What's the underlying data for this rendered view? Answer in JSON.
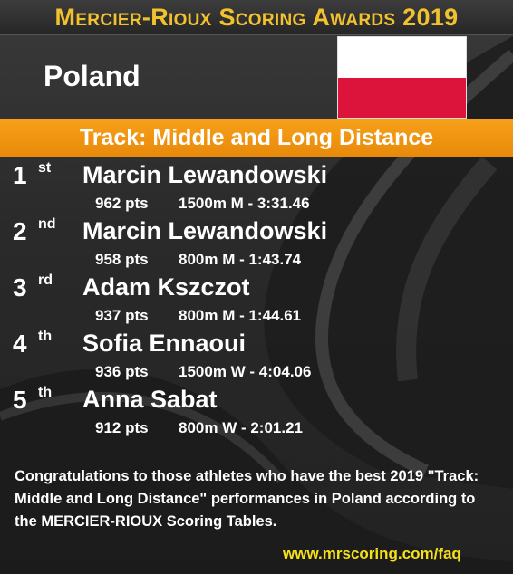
{
  "header": {
    "title": "Mercier-Rioux Scoring Awards 2019"
  },
  "country": {
    "name": "Poland"
  },
  "flag": {
    "top_color": "#ffffff",
    "bottom_color": "#dc143c"
  },
  "category": {
    "title": "Track: Middle and Long Distance"
  },
  "colors": {
    "accent_gold": "#f2c12e",
    "category_orange": "#f29a12",
    "link_yellow": "#f5e11a"
  },
  "rankings": [
    {
      "rank": "1",
      "suffix": "st",
      "athlete": "Marcin Lewandowski",
      "points": "962 pts",
      "event": "1500m M  -  3:31.46"
    },
    {
      "rank": "2",
      "suffix": "nd",
      "athlete": "Marcin Lewandowski",
      "points": "958 pts",
      "event": "800m M  -  1:43.74"
    },
    {
      "rank": "3",
      "suffix": "rd",
      "athlete": "Adam Kszczot",
      "points": "937 pts",
      "event": "800m M  -  1:44.61"
    },
    {
      "rank": "4",
      "suffix": "th",
      "athlete": "Sofia Ennaoui",
      "points": "936 pts",
      "event": "1500m W  -  4:04.06"
    },
    {
      "rank": "5",
      "suffix": "th",
      "athlete": "Anna Sabat",
      "points": "912 pts",
      "event": "800m W  -  2:01.21"
    }
  ],
  "footer": {
    "congrats": "Congratulations to those athletes who have the best 2019 \"Track: Middle and Long Distance\" performances in Poland according to the MERCIER-RIOUX Scoring Tables.",
    "link": "www.mrscoring.com/faq"
  }
}
